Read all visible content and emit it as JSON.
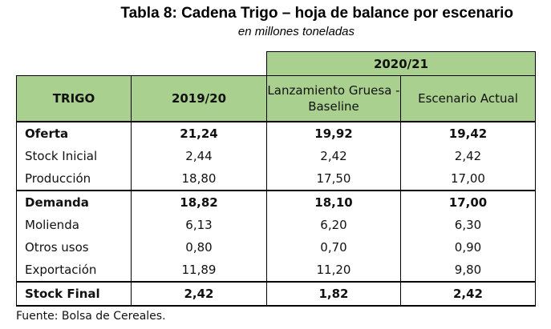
{
  "title": "Tabla 8: Cadena Trigo – hoja de balance por escenario",
  "subtitle": "en millones toneladas",
  "group_header": "2020/21",
  "headers": [
    "TRIGO",
    "2019/20",
    "Lanzamiento Gruesa - Baseline",
    "Escenario Actual"
  ],
  "rows": [
    {
      "label": "Oferta",
      "values": [
        "21,24",
        "19,92",
        "19,42"
      ]
    },
    {
      "label": "Stock Inicial",
      "values": [
        "2,44",
        "2,42",
        "2,42"
      ]
    },
    {
      "label": "Producción",
      "values": [
        "18,80",
        "17,50",
        "17,00"
      ]
    },
    {
      "label": "Demanda",
      "values": [
        "18,82",
        "18,10",
        "17,00"
      ]
    },
    {
      "label": "Molienda",
      "values": [
        "6,13",
        "6,20",
        "6,30"
      ]
    },
    {
      "label": "Otros usos",
      "values": [
        "0,80",
        "0,70",
        "0,90"
      ]
    },
    {
      "label": "Exportación",
      "values": [
        "11,89",
        "11,20",
        "9,80"
      ]
    },
    {
      "label": "Stock Final",
      "values": [
        "2,42",
        "1,82",
        "2,42"
      ]
    }
  ],
  "source": "Fuente: Bolsa de Cereales."
}
